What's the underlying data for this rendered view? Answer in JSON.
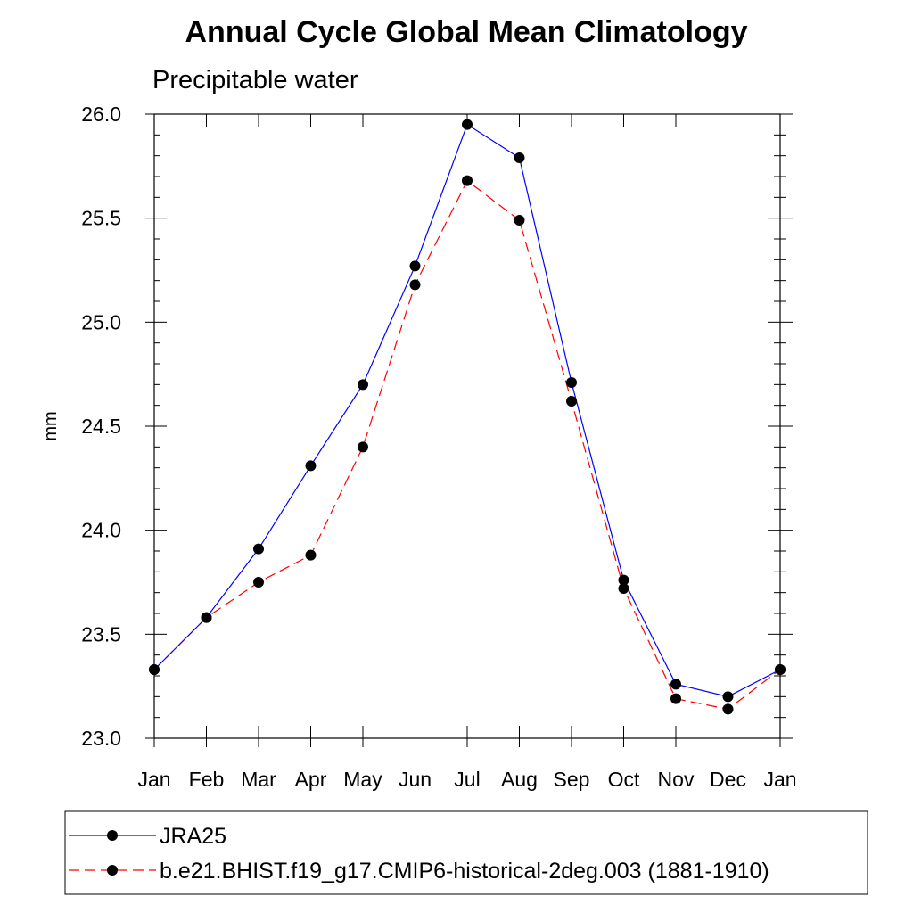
{
  "chart_data": {
    "type": "line",
    "title": "Annual Cycle Global Mean Climatology",
    "subtitle": "Precipitable water",
    "xlabel": "",
    "ylabel": "mm",
    "categories": [
      "Jan",
      "Feb",
      "Mar",
      "Apr",
      "May",
      "Jun",
      "Jul",
      "Aug",
      "Sep",
      "Oct",
      "Nov",
      "Dec",
      "Jan"
    ],
    "yticks": [
      "23.0",
      "23.5",
      "24.0",
      "24.5",
      "25.0",
      "25.5",
      "26.0"
    ],
    "ylim": [
      23.0,
      26.0
    ],
    "grid": false,
    "legend_position": "bottom",
    "series": [
      {
        "name": "JRA25",
        "color": "#0000ff",
        "dash": "solid",
        "marker": "filled-circle",
        "values": [
          23.33,
          23.58,
          23.91,
          24.31,
          24.7,
          25.27,
          25.95,
          25.79,
          24.71,
          23.76,
          23.26,
          23.2,
          23.33
        ]
      },
      {
        "name": "b.e21.BHIST.f19_g17.CMIP6-historical-2deg.003 (1881-1910)",
        "color": "#ff0000",
        "dash": "dashed",
        "marker": "filled-circle",
        "values": [
          23.33,
          23.58,
          23.75,
          23.88,
          24.4,
          25.18,
          25.68,
          25.49,
          24.62,
          23.72,
          23.19,
          23.14,
          23.33
        ]
      }
    ]
  }
}
